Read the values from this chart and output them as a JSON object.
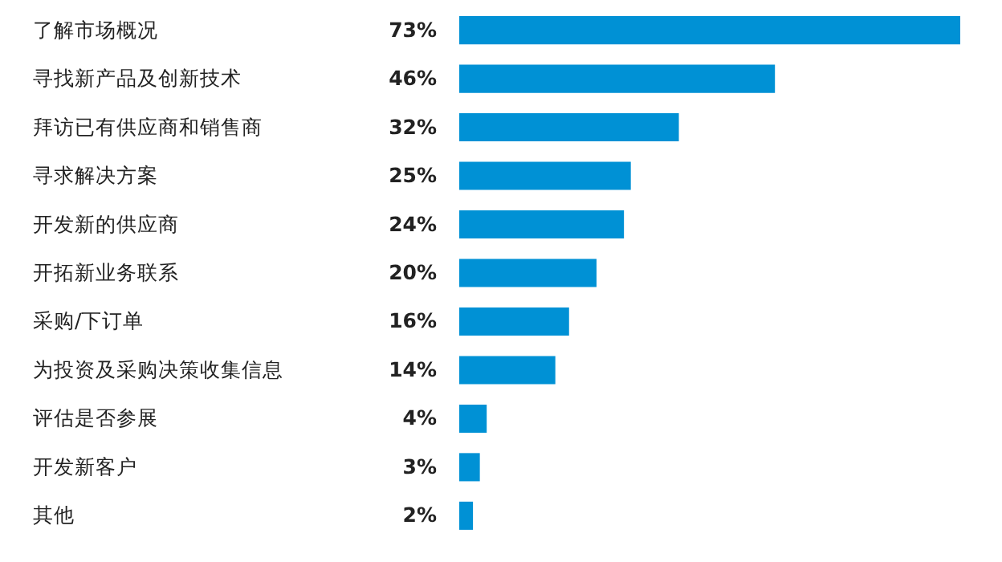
{
  "chart_data": {
    "type": "bar",
    "orientation": "horizontal",
    "categories": [
      "了解市场概况",
      "寻找新产品及创新技术",
      "拜访已有供应商和销售商",
      "寻求解决方案",
      "开发新的供应商",
      "开拓新业务联系",
      "采购/下订单",
      "为投资及采购决策收集信息",
      "评估是否参展",
      "开发新客户",
      "其他"
    ],
    "values": [
      73,
      46,
      32,
      25,
      24,
      20,
      16,
      14,
      4,
      3,
      2
    ],
    "value_labels": [
      "73%",
      "46%",
      "32%",
      "25%",
      "24%",
      "20%",
      "16%",
      "14%",
      "4%",
      "3%",
      "2%"
    ],
    "color": "#0091d5"
  }
}
